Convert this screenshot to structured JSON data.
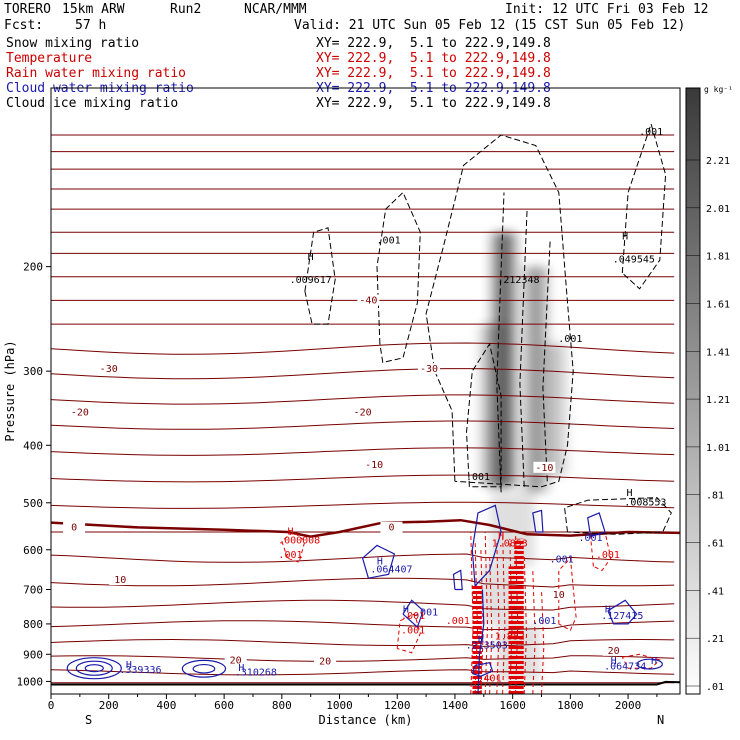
{
  "header": {
    "model": "TORERO",
    "resolution": "15km ARW",
    "run": "Run2",
    "org": "NCAR/MMM",
    "init": "Init: 12 UTC Fri 03 Feb 12",
    "fcst_label": "Fcst:",
    "fcst_value": "57 h",
    "valid": "Valid: 21 UTC Sun 05 Feb 12 (15 CST Sun 05 Feb 12)"
  },
  "fields": [
    {
      "name": "Snow mixing ratio",
      "xy": "XY= 222.9,  5.1 to 222.9,149.8",
      "color": "#000000"
    },
    {
      "name": "Temperature",
      "xy": "XY= 222.9,  5.1 to 222.9,149.8",
      "color": "#cc0000"
    },
    {
      "name": "Rain water mixing ratio",
      "xy": "XY= 222.9,  5.1 to 222.9,149.8",
      "color": "#cc0000"
    },
    {
      "name": "Cloud water mixing ratio",
      "xy": "XY= 222.9,  5.1 to 222.9,149.8",
      "color": "#1a1aaa"
    },
    {
      "name": "Cloud ice mixing ratio",
      "xy": "XY= 222.9,  5.1 to 222.9,149.8",
      "color": "#000000"
    }
  ],
  "colors": {
    "temperature": "#7a0000",
    "rain": "#e00000",
    "cloud_water": "#1a1aaa",
    "snow": "#000000"
  },
  "chart_data": {
    "type": "cross-section",
    "xlabel": "Distance (km)",
    "ylabel": "Pressure (hPa)",
    "xlim": [
      0,
      2180
    ],
    "ylim": [
      1050,
      100
    ],
    "y_log_scale": true,
    "x_ticks": [
      0,
      200,
      400,
      600,
      800,
      1000,
      1200,
      1400,
      1600,
      1800,
      2000
    ],
    "y_ticks": [
      200,
      300,
      400,
      500,
      600,
      700,
      800,
      900,
      1000
    ],
    "x_end_labels": {
      "left": "S",
      "right": "N"
    },
    "colorbar": {
      "unit": "g kg⁻¹",
      "labels": [
        "2.21",
        "2.01",
        "1.81",
        "1.61",
        "1.41",
        "1.21",
        "1.01",
        ".81",
        ".61",
        ".41",
        ".21",
        ".01"
      ]
    },
    "temperature_isotherms_C": [
      {
        "label": "-40",
        "at_x": 1100,
        "at_p": 230
      },
      {
        "label": "-30",
        "at_x": 200,
        "at_p": 300
      },
      {
        "label": "-30",
        "at_x": 1310,
        "at_p": 300
      },
      {
        "label": "-20",
        "at_x": 100,
        "at_p": 355
      },
      {
        "label": "-20",
        "at_x": 1080,
        "at_p": 355
      },
      {
        "label": "-10",
        "at_x": 1120,
        "at_p": 435
      },
      {
        "label": "-10",
        "at_x": 1710,
        "at_p": 440
      },
      {
        "label": "0",
        "at_x": 80,
        "at_p": 555
      },
      {
        "label": "0",
        "at_x": 1180,
        "at_p": 555
      },
      {
        "label": "10",
        "at_x": 240,
        "at_p": 680
      },
      {
        "label": "10",
        "at_x": 1760,
        "at_p": 720
      },
      {
        "label": "20",
        "at_x": 640,
        "at_p": 930
      },
      {
        "label": "20",
        "at_x": 950,
        "at_p": 932
      },
      {
        "label": "20",
        "at_x": 1950,
        "at_p": 895
      }
    ],
    "annotations": [
      {
        "text": "H",
        "at_x": 900,
        "at_p": 195,
        "series": "snow"
      },
      {
        "text": ".009617",
        "at_x": 900,
        "at_p": 213,
        "series": "snow"
      },
      {
        "text": ".001",
        "at_x": 1170,
        "at_p": 183,
        "series": "snow"
      },
      {
        "text": ".212348",
        "at_x": 1620,
        "at_p": 213,
        "series": "snow"
      },
      {
        "text": "H",
        "at_x": 1990,
        "at_p": 180,
        "series": "snow"
      },
      {
        "text": ".049545",
        "at_x": 2020,
        "at_p": 197,
        "series": "snow"
      },
      {
        "text": ".001",
        "at_x": 2080,
        "at_p": 120,
        "series": "snow"
      },
      {
        "text": ".001",
        "at_x": 1800,
        "at_p": 268,
        "series": "snow"
      },
      {
        "text": "H",
        "at_x": 2005,
        "at_p": 487,
        "series": "snow"
      },
      {
        "text": ".008553",
        "at_x": 2060,
        "at_p": 505,
        "series": "snow"
      },
      {
        "text": ".001",
        "at_x": 1480,
        "at_p": 458,
        "series": "snow"
      },
      {
        "text": "H",
        "at_x": 830,
        "at_p": 565,
        "series": "rain"
      },
      {
        "text": ".000008",
        "at_x": 860,
        "at_p": 585,
        "series": "rain"
      },
      {
        "text": ".001",
        "at_x": 830,
        "at_p": 620,
        "series": "rain"
      },
      {
        "text": ".001",
        "at_x": 1870,
        "at_p": 580,
        "series": "cloud_water"
      },
      {
        "text": ".001",
        "at_x": 1930,
        "at_p": 620,
        "series": "rain"
      },
      {
        "text": "H",
        "at_x": 1560,
        "at_p": 575,
        "series": "rain"
      },
      {
        "text": "1.0853",
        "at_x": 1590,
        "at_p": 592,
        "series": "rain"
      },
      {
        "text": "H",
        "at_x": 1140,
        "at_p": 635,
        "series": "cloud_water"
      },
      {
        "text": ".064407",
        "at_x": 1180,
        "at_p": 655,
        "series": "cloud_water"
      },
      {
        "text": ".001",
        "at_x": 1770,
        "at_p": 630,
        "series": "cloud_water"
      },
      {
        "text": "H",
        "at_x": 1230,
        "at_p": 765,
        "series": "cloud_water"
      },
      {
        "text": ".001",
        "at_x": 1300,
        "at_p": 775,
        "series": "cloud_water"
      },
      {
        "text": ".001",
        "at_x": 1255,
        "at_p": 785,
        "series": "rain"
      },
      {
        "text": ".001",
        "at_x": 1255,
        "at_p": 830,
        "series": "rain"
      },
      {
        "text": ".001",
        "at_x": 1410,
        "at_p": 800,
        "series": "rain"
      },
      {
        "text": ".001",
        "at_x": 1710,
        "at_p": 800,
        "series": "cloud_water"
      },
      {
        "text": "H",
        "at_x": 1930,
        "at_p": 765,
        "series": "cloud_water"
      },
      {
        "text": ".127415",
        "at_x": 1980,
        "at_p": 785,
        "series": "cloud_water"
      },
      {
        "text": "H",
        "at_x": 1490,
        "at_p": 860,
        "series": "cloud_water"
      },
      {
        "text": ".213503",
        "at_x": 1510,
        "at_p": 880,
        "series": "cloud_water"
      },
      {
        "text": "1.852",
        "at_x": 1590,
        "at_p": 850,
        "series": "rain"
      },
      {
        "text": ".401",
        "at_x": 1520,
        "at_p": 1000,
        "series": "rain"
      },
      {
        "text": "H",
        "at_x": 270,
        "at_p": 950,
        "series": "cloud_water"
      },
      {
        "text": ".339336",
        "at_x": 310,
        "at_p": 968,
        "series": "cloud_water"
      },
      {
        "text": "H",
        "at_x": 660,
        "at_p": 960,
        "series": "cloud_water"
      },
      {
        "text": ".310268",
        "at_x": 710,
        "at_p": 978,
        "series": "cloud_water"
      },
      {
        "text": "H",
        "at_x": 1950,
        "at_p": 935,
        "series": "cloud_water"
      },
      {
        "text": ".064734",
        "at_x": 1990,
        "at_p": 955,
        "series": "cloud_water"
      },
      {
        "text": "H",
        "at_x": 2090,
        "at_p": 935,
        "series": "cloud_water"
      }
    ]
  }
}
